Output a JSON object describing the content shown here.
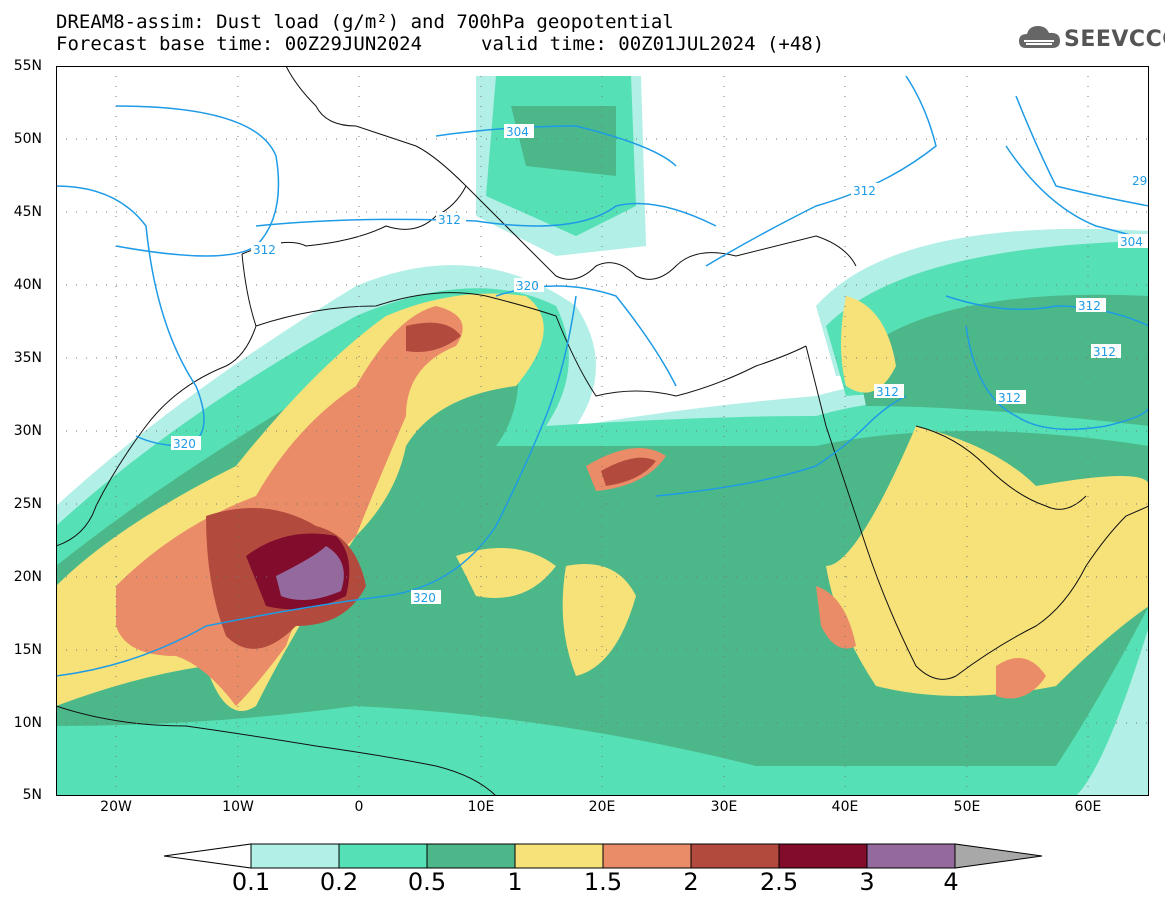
{
  "title": {
    "line1": "DREAM8-assim: Dust load (g/m²) and 700hPa geopotential",
    "line2_base": "Forecast base time: 00Z29JUN2024",
    "line2_valid": "valid time: 00Z01JUL2024 (+48)"
  },
  "logo": {
    "text": "SEEVCCC",
    "icon": "cloud-icon"
  },
  "axes": {
    "lat_labels": [
      "55N",
      "50N",
      "45N",
      "40N",
      "35N",
      "30N",
      "25N",
      "20N",
      "15N",
      "10N",
      "5N"
    ],
    "lon_labels": [
      "20W",
      "10W",
      "0",
      "10E",
      "20E",
      "30E",
      "40E",
      "50E",
      "60E"
    ]
  },
  "contours": {
    "labels": [
      "304",
      "312",
      "320",
      "312",
      "312",
      "312",
      "312",
      "312",
      "312",
      "304",
      "320",
      "320",
      "29"
    ]
  },
  "legend": {
    "colors": [
      "#ffffff",
      "#b2efe6",
      "#56e0b5",
      "#4cb88a",
      "#f7e27a",
      "#ea8c68",
      "#b34a3e",
      "#820c2c",
      "#946a9e",
      "#a8a8a8"
    ],
    "labels": [
      "0.1",
      "0.2",
      "0.5",
      "1",
      "1.5",
      "2",
      "2.5",
      "3",
      "4"
    ]
  },
  "colors": {
    "contour": "#1e9be6",
    "frame": "#000000"
  }
}
